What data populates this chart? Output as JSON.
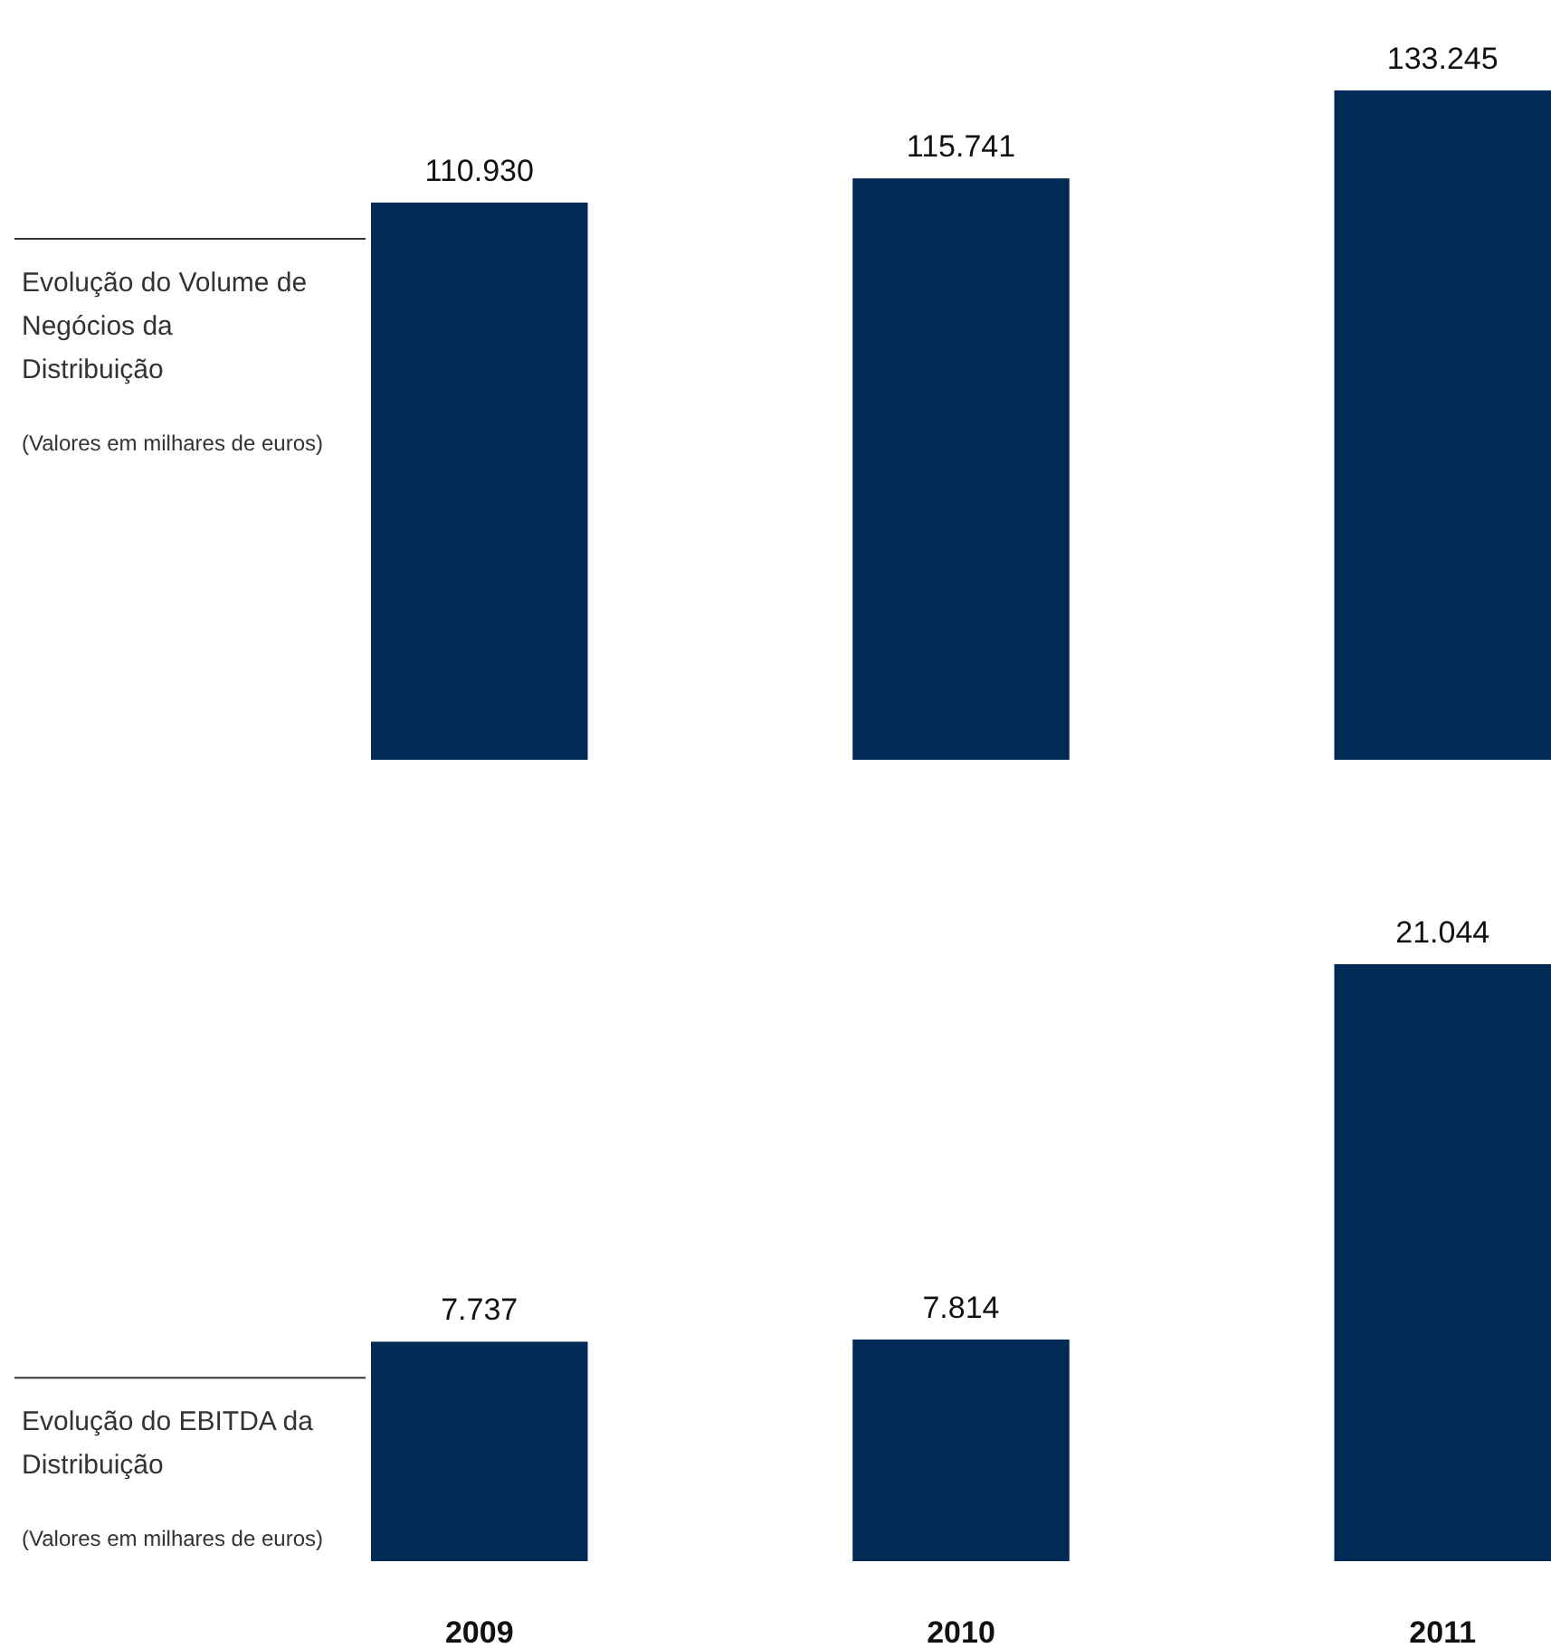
{
  "chart_data": [
    {
      "type": "bar",
      "title": "Evolução do Volume de Negócios da Distribuição",
      "subtitle": "(Valores em milhares de euros)",
      "categories": [
        null,
        null,
        null
      ],
      "values": [
        110930,
        115741,
        133245
      ],
      "value_labels": [
        "110.930",
        "115.741",
        "133.245"
      ],
      "color": "#022a57",
      "tick_labels": false
    },
    {
      "type": "bar",
      "title": "Evolução do EBITDA da Distribuição",
      "subtitle": "(Valores em milhares de euros)",
      "categories": [
        "2009",
        "2010",
        "2011"
      ],
      "values": [
        7737,
        7814,
        21044
      ],
      "value_labels": [
        "7.737",
        "7.814",
        "21.044"
      ],
      "color": "#022a57",
      "tick_labels": "x"
    }
  ]
}
